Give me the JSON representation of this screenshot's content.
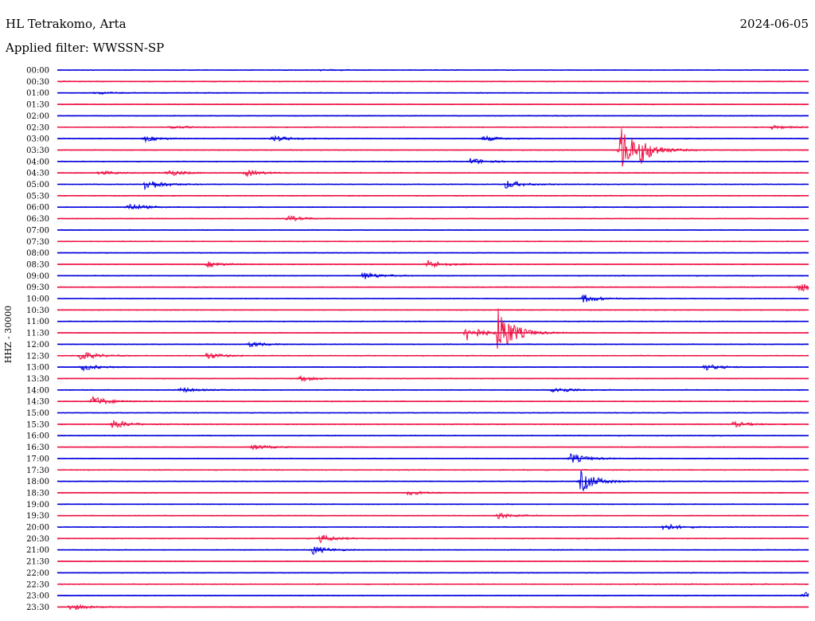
{
  "header": {
    "station": "HL Tetrakomo, Arta",
    "date": "2024-06-05",
    "filter": "Applied filter: WWSSN-SP"
  },
  "chart_data": {
    "type": "line",
    "ylabel": "HHZ - 30000",
    "colors": [
      "#0000dd",
      "#ee1144"
    ],
    "rows": [
      "00:00",
      "00:30",
      "01:00",
      "01:30",
      "02:00",
      "02:30",
      "03:00",
      "03:30",
      "04:00",
      "04:30",
      "05:00",
      "05:30",
      "06:00",
      "06:30",
      "07:00",
      "07:30",
      "08:00",
      "08:30",
      "09:00",
      "09:30",
      "10:00",
      "10:30",
      "11:00",
      "11:30",
      "12:00",
      "12:30",
      "13:00",
      "13:30",
      "14:00",
      "14:30",
      "15:00",
      "15:30",
      "16:00",
      "16:30",
      "17:00",
      "17:30",
      "18:00",
      "18:30",
      "19:00",
      "19:30",
      "20:00",
      "20:30",
      "21:00",
      "21:30",
      "22:00",
      "22:30",
      "23:00",
      "23:30"
    ],
    "events": [
      {
        "row": "00:00",
        "minute": 10.5,
        "amplitude": 0.15
      },
      {
        "row": "01:00",
        "minute": 1.5,
        "amplitude": 0.25
      },
      {
        "row": "02:30",
        "minute": 4.5,
        "amplitude": 0.3
      },
      {
        "row": "02:30",
        "minute": 28.5,
        "amplitude": 0.4
      },
      {
        "row": "03:00",
        "minute": 3.5,
        "amplitude": 0.5
      },
      {
        "row": "03:00",
        "minute": 8.6,
        "amplitude": 0.6
      },
      {
        "row": "03:00",
        "minute": 17.0,
        "amplitude": 0.5
      },
      {
        "row": "03:30",
        "minute": 22.5,
        "amplitude": 4.5
      },
      {
        "row": "03:30",
        "minute": 23.3,
        "amplitude": 1.5
      },
      {
        "row": "04:00",
        "minute": 16.5,
        "amplitude": 0.6
      },
      {
        "row": "04:30",
        "minute": 1.7,
        "amplitude": 0.4
      },
      {
        "row": "04:30",
        "minute": 4.4,
        "amplitude": 0.6
      },
      {
        "row": "04:30",
        "minute": 7.5,
        "amplitude": 0.6
      },
      {
        "row": "05:00",
        "minute": 3.5,
        "amplitude": 1.2
      },
      {
        "row": "05:00",
        "minute": 17.9,
        "amplitude": 0.8
      },
      {
        "row": "06:00",
        "minute": 2.8,
        "amplitude": 0.8
      },
      {
        "row": "06:30",
        "minute": 9.2,
        "amplitude": 0.5
      },
      {
        "row": "08:30",
        "minute": 6.0,
        "amplitude": 0.5
      },
      {
        "row": "08:30",
        "minute": 14.8,
        "amplitude": 0.8
      },
      {
        "row": "09:00",
        "minute": 12.2,
        "amplitude": 0.7
      },
      {
        "row": "09:30",
        "minute": 29.6,
        "amplitude": 0.9
      },
      {
        "row": "10:00",
        "minute": 21.0,
        "amplitude": 0.8
      },
      {
        "row": "11:30",
        "minute": 16.3,
        "amplitude": 1.6
      },
      {
        "row": "11:30",
        "minute": 17.6,
        "amplitude": 4.5
      },
      {
        "row": "12:00",
        "minute": 7.7,
        "amplitude": 0.5
      },
      {
        "row": "12:30",
        "minute": 0.9,
        "amplitude": 0.9
      },
      {
        "row": "12:30",
        "minute": 5.9,
        "amplitude": 0.7
      },
      {
        "row": "13:00",
        "minute": 1.0,
        "amplitude": 0.6
      },
      {
        "row": "13:00",
        "minute": 25.8,
        "amplitude": 0.6
      },
      {
        "row": "13:30",
        "minute": 9.7,
        "amplitude": 0.5
      },
      {
        "row": "14:00",
        "minute": 4.9,
        "amplitude": 0.5
      },
      {
        "row": "14:00",
        "minute": 19.8,
        "amplitude": 0.7
      },
      {
        "row": "14:30",
        "minute": 1.4,
        "amplitude": 1.0
      },
      {
        "row": "15:30",
        "minute": 2.2,
        "amplitude": 0.9
      },
      {
        "row": "15:30",
        "minute": 27.0,
        "amplitude": 0.5
      },
      {
        "row": "16:30",
        "minute": 7.8,
        "amplitude": 0.5
      },
      {
        "row": "17:00",
        "minute": 20.5,
        "amplitude": 0.9
      },
      {
        "row": "18:00",
        "minute": 20.9,
        "amplitude": 2.0
      },
      {
        "row": "18:30",
        "minute": 14.0,
        "amplitude": 0.4
      },
      {
        "row": "19:30",
        "minute": 17.6,
        "amplitude": 0.5
      },
      {
        "row": "20:00",
        "minute": 24.2,
        "amplitude": 0.7
      },
      {
        "row": "20:30",
        "minute": 10.5,
        "amplitude": 0.7
      },
      {
        "row": "21:00",
        "minute": 10.2,
        "amplitude": 0.8
      },
      {
        "row": "23:00",
        "minute": 29.8,
        "amplitude": 0.6
      },
      {
        "row": "23:30",
        "minute": 0.5,
        "amplitude": 0.6
      }
    ]
  }
}
